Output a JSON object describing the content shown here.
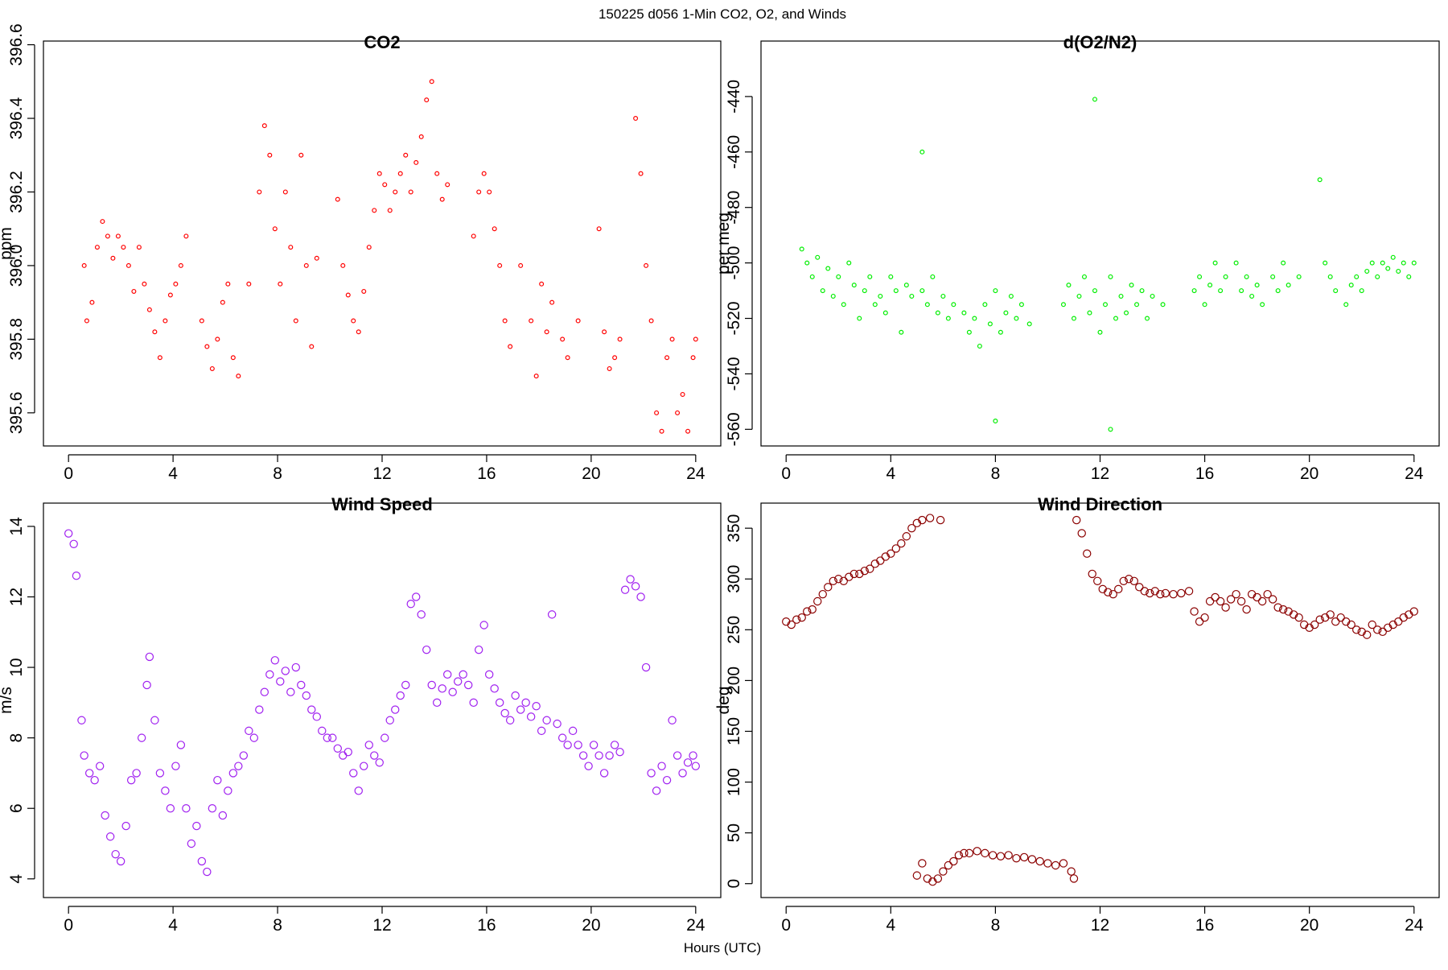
{
  "title": "150225   d056   1-Min CO2, O2, and Winds",
  "xlabel": "Hours (UTC)",
  "chart_data": [
    {
      "type": "scatter",
      "title": "CO2",
      "ylabel": "ppm",
      "color": "#ff0000",
      "marker_size": "small",
      "xlim": [
        -0.96,
        24.96
      ],
      "xticks": [
        0,
        4,
        8,
        12,
        16,
        20,
        24
      ],
      "ylim": [
        395.51,
        396.61
      ],
      "yticks": [
        395.6,
        395.8,
        {
          "value": 396,
          "label": "396.0"
        },
        396.2,
        396.4,
        396.6
      ],
      "x": [
        0.6,
        0.7,
        0.9,
        1.1,
        1.3,
        1.5,
        1.7,
        1.9,
        2.1,
        2.3,
        2.5,
        2.7,
        2.9,
        3.1,
        3.3,
        3.5,
        3.7,
        3.9,
        4.1,
        4.3,
        4.5,
        5.1,
        5.3,
        5.5,
        5.7,
        5.9,
        6.1,
        6.3,
        6.5,
        6.9,
        7.3,
        7.5,
        7.7,
        7.9,
        8.1,
        8.3,
        8.5,
        8.7,
        8.9,
        9.1,
        9.3,
        9.5,
        10.3,
        10.5,
        10.7,
        10.9,
        11.1,
        11.3,
        11.5,
        11.7,
        11.9,
        12.1,
        12.3,
        12.5,
        12.7,
        12.9,
        13.1,
        13.3,
        13.5,
        13.7,
        13.9,
        14.1,
        14.3,
        14.5,
        15.5,
        15.7,
        15.9,
        16.1,
        16.3,
        16.5,
        16.7,
        16.9,
        17.3,
        17.7,
        17.9,
        18.1,
        18.3,
        18.5,
        18.9,
        19.1,
        19.5,
        20.3,
        20.5,
        20.7,
        20.9,
        21.1,
        21.7,
        21.9,
        22.1,
        22.3,
        22.5,
        22.7,
        22.9,
        23.1,
        23.3,
        23.5,
        23.7,
        23.9,
        24.0
      ],
      "values": [
        396.0,
        395.85,
        395.9,
        396.05,
        396.12,
        396.08,
        396.02,
        396.08,
        396.05,
        396.0,
        395.93,
        396.05,
        395.95,
        395.88,
        395.82,
        395.75,
        395.85,
        395.92,
        395.95,
        396.0,
        396.08,
        395.85,
        395.78,
        395.72,
        395.8,
        395.9,
        395.95,
        395.75,
        395.7,
        395.95,
        396.2,
        396.38,
        396.3,
        396.1,
        395.95,
        396.2,
        396.05,
        395.85,
        396.3,
        396.0,
        395.78,
        396.02,
        396.18,
        396.0,
        395.92,
        395.85,
        395.82,
        395.93,
        396.05,
        396.15,
        396.25,
        396.22,
        396.15,
        396.2,
        396.25,
        396.3,
        396.2,
        396.28,
        396.35,
        396.45,
        396.5,
        396.25,
        396.18,
        396.22,
        396.08,
        396.2,
        396.25,
        396.2,
        396.1,
        396.0,
        395.85,
        395.78,
        396.0,
        395.85,
        395.7,
        395.95,
        395.82,
        395.9,
        395.8,
        395.75,
        395.85,
        396.1,
        395.82,
        395.72,
        395.75,
        395.8,
        396.4,
        396.25,
        396.0,
        395.85,
        395.6,
        395.55,
        395.75,
        395.8,
        395.6,
        395.65,
        395.55,
        395.75,
        395.8
      ]
    },
    {
      "type": "scatter",
      "title": "d(O2/N2)",
      "ylabel": "per meg",
      "color": "#00ee00",
      "marker_size": "small",
      "xlim": [
        -0.96,
        24.96
      ],
      "xticks": [
        0,
        4,
        8,
        12,
        16,
        20,
        24
      ],
      "ylim": [
        -566,
        -420
      ],
      "yticks": [
        -560,
        -540,
        -520,
        -500,
        -480,
        -460,
        -440
      ],
      "x": [
        0.6,
        0.8,
        1.0,
        1.2,
        1.4,
        1.6,
        1.8,
        2.0,
        2.2,
        2.4,
        2.6,
        2.8,
        3.0,
        3.2,
        3.4,
        3.6,
        3.8,
        4.0,
        4.2,
        4.4,
        4.6,
        4.8,
        5.2,
        5.2,
        5.4,
        5.6,
        5.8,
        6.0,
        6.2,
        6.4,
        6.8,
        7.0,
        7.2,
        7.4,
        7.6,
        7.8,
        8.0,
        8.0,
        8.2,
        8.4,
        8.6,
        8.8,
        9.0,
        9.3,
        10.6,
        10.8,
        11.0,
        11.2,
        11.4,
        11.6,
        11.8,
        11.8,
        12.0,
        12.2,
        12.4,
        12.4,
        12.6,
        12.8,
        13.0,
        13.2,
        13.4,
        13.6,
        13.8,
        14.0,
        14.4,
        15.6,
        15.8,
        16.0,
        16.2,
        16.4,
        16.6,
        16.8,
        17.2,
        17.4,
        17.6,
        17.8,
        18.0,
        18.2,
        18.6,
        18.8,
        19.0,
        19.2,
        19.6,
        20.4,
        20.6,
        20.8,
        21.0,
        21.4,
        21.6,
        21.8,
        22.0,
        22.2,
        22.4,
        22.6,
        22.8,
        23.0,
        23.2,
        23.4,
        23.6,
        23.8,
        24.0
      ],
      "values": [
        -495,
        -500,
        -505,
        -498,
        -510,
        -502,
        -512,
        -505,
        -515,
        -500,
        -508,
        -520,
        -510,
        -505,
        -515,
        -512,
        -518,
        -505,
        -510,
        -525,
        -508,
        -512,
        -510,
        -460,
        -515,
        -505,
        -518,
        -512,
        -520,
        -515,
        -518,
        -525,
        -520,
        -530,
        -515,
        -522,
        -510,
        -557,
        -525,
        -518,
        -512,
        -520,
        -515,
        -522,
        -515,
        -508,
        -520,
        -512,
        -505,
        -518,
        -510,
        -441,
        -525,
        -515,
        -505,
        -560,
        -520,
        -512,
        -518,
        -508,
        -515,
        -510,
        -520,
        -512,
        -515,
        -510,
        -505,
        -515,
        -508,
        -500,
        -510,
        -505,
        -500,
        -510,
        -505,
        -512,
        -508,
        -515,
        -505,
        -510,
        -500,
        -508,
        -505,
        -470,
        -500,
        -505,
        -510,
        -515,
        -508,
        -505,
        -510,
        -503,
        -500,
        -505,
        -500,
        -502,
        -498,
        -503,
        -500,
        -505,
        -500
      ]
    },
    {
      "type": "scatter",
      "title": "Wind Speed",
      "ylabel": "m/s",
      "color": "#a020f0",
      "marker_size": "large",
      "xlim": [
        -0.96,
        24.96
      ],
      "xticks": [
        0,
        4,
        8,
        12,
        16,
        20,
        24
      ],
      "ylim": [
        3.47,
        14.66
      ],
      "yticks": [
        4,
        6,
        8,
        10,
        12,
        14
      ],
      "x": [
        0.0,
        0.2,
        0.3,
        0.5,
        0.6,
        0.8,
        1.0,
        1.2,
        1.4,
        1.6,
        1.8,
        2.0,
        2.2,
        2.4,
        2.6,
        2.8,
        3.0,
        3.1,
        3.3,
        3.5,
        3.7,
        3.9,
        4.1,
        4.3,
        4.5,
        4.7,
        4.9,
        5.1,
        5.3,
        5.5,
        5.7,
        5.9,
        6.1,
        6.3,
        6.5,
        6.7,
        6.9,
        7.1,
        7.3,
        7.5,
        7.7,
        7.9,
        8.1,
        8.3,
        8.5,
        8.7,
        8.9,
        9.1,
        9.3,
        9.5,
        9.7,
        9.9,
        10.1,
        10.3,
        10.5,
        10.7,
        10.9,
        11.1,
        11.3,
        11.5,
        11.7,
        11.9,
        12.1,
        12.3,
        12.5,
        12.7,
        12.9,
        13.1,
        13.3,
        13.5,
        13.7,
        13.9,
        14.1,
        14.3,
        14.5,
        14.7,
        14.9,
        15.1,
        15.3,
        15.5,
        15.7,
        15.9,
        16.1,
        16.3,
        16.5,
        16.7,
        16.9,
        17.1,
        17.3,
        17.5,
        17.7,
        17.9,
        18.1,
        18.3,
        18.5,
        18.7,
        18.9,
        19.1,
        19.3,
        19.5,
        19.7,
        19.9,
        20.1,
        20.3,
        20.5,
        20.7,
        20.9,
        21.1,
        21.3,
        21.5,
        21.7,
        21.9,
        22.1,
        22.3,
        22.5,
        22.7,
        22.9,
        23.1,
        23.3,
        23.5,
        23.7,
        23.9,
        24.0
      ],
      "values": [
        13.8,
        13.5,
        12.6,
        8.5,
        7.5,
        7.0,
        6.8,
        7.2,
        5.8,
        5.2,
        4.7,
        4.5,
        5.5,
        6.8,
        7.0,
        8.0,
        9.5,
        10.3,
        8.5,
        7.0,
        6.5,
        6.0,
        7.2,
        7.8,
        6.0,
        5.0,
        5.5,
        4.5,
        4.2,
        6.0,
        6.8,
        5.8,
        6.5,
        7.0,
        7.2,
        7.5,
        8.2,
        8.0,
        8.8,
        9.3,
        9.8,
        10.2,
        9.6,
        9.9,
        9.3,
        10.0,
        9.5,
        9.2,
        8.8,
        8.6,
        8.2,
        8.0,
        8.0,
        7.7,
        7.5,
        7.6,
        7.0,
        6.5,
        7.2,
        7.8,
        7.5,
        7.3,
        8.0,
        8.5,
        8.8,
        9.2,
        9.5,
        11.8,
        12.0,
        11.5,
        10.5,
        9.5,
        9.0,
        9.4,
        9.8,
        9.3,
        9.6,
        9.8,
        9.5,
        9.0,
        10.5,
        11.2,
        9.8,
        9.4,
        9.0,
        8.7,
        8.5,
        9.2,
        8.8,
        9.0,
        8.6,
        8.9,
        8.2,
        8.5,
        11.5,
        8.4,
        8.0,
        7.8,
        8.2,
        7.8,
        7.5,
        7.2,
        7.8,
        7.5,
        7.0,
        7.5,
        7.8,
        7.6,
        12.2,
        12.5,
        12.3,
        12.0,
        10.0,
        7.0,
        6.5,
        7.2,
        6.8,
        8.5,
        7.5,
        7.0,
        7.3,
        7.5,
        7.2
      ]
    },
    {
      "type": "scatter",
      "title": "Wind Direction",
      "ylabel": "deg",
      "color": "#8b0000",
      "marker_size": "large",
      "xlim": [
        -0.96,
        24.96
      ],
      "xticks": [
        0,
        4,
        8,
        12,
        16,
        20,
        24
      ],
      "ylim": [
        -13.7,
        374.7
      ],
      "yticks": [
        0,
        50,
        100,
        150,
        200,
        250,
        300,
        350
      ],
      "x": [
        0.0,
        0.2,
        0.4,
        0.6,
        0.8,
        1.0,
        1.2,
        1.4,
        1.6,
        1.8,
        2.0,
        2.2,
        2.4,
        2.6,
        2.8,
        3.0,
        3.2,
        3.4,
        3.6,
        3.8,
        4.0,
        4.2,
        4.4,
        4.6,
        4.8,
        5.0,
        5.2,
        5.5,
        5.9,
        5.0,
        5.2,
        5.4,
        5.6,
        5.8,
        6.0,
        6.2,
        6.4,
        6.6,
        6.8,
        7.0,
        7.3,
        7.6,
        7.9,
        8.2,
        8.5,
        8.8,
        9.1,
        9.4,
        9.7,
        10.0,
        10.3,
        10.6,
        10.9,
        11.0,
        11.1,
        11.3,
        11.5,
        11.7,
        11.9,
        12.1,
        12.3,
        12.5,
        12.7,
        12.9,
        13.1,
        13.3,
        13.5,
        13.7,
        13.9,
        14.1,
        14.3,
        14.5,
        14.8,
        15.1,
        15.4,
        15.6,
        15.8,
        16.0,
        16.2,
        16.4,
        16.6,
        16.8,
        17.0,
        17.2,
        17.4,
        17.6,
        17.8,
        18.0,
        18.2,
        18.4,
        18.6,
        18.8,
        19.0,
        19.2,
        19.4,
        19.6,
        19.8,
        20.0,
        20.2,
        20.4,
        20.6,
        20.8,
        21.0,
        21.2,
        21.4,
        21.6,
        21.8,
        22.0,
        22.2,
        22.4,
        22.6,
        22.8,
        23.0,
        23.2,
        23.4,
        23.6,
        23.8,
        24.0
      ],
      "values": [
        258,
        255,
        260,
        262,
        268,
        270,
        278,
        285,
        292,
        298,
        300,
        298,
        302,
        305,
        305,
        308,
        310,
        315,
        318,
        322,
        325,
        330,
        335,
        342,
        350,
        355,
        358,
        360,
        358,
        8,
        20,
        5,
        2,
        5,
        12,
        18,
        22,
        28,
        30,
        30,
        32,
        30,
        28,
        27,
        28,
        25,
        26,
        24,
        22,
        20,
        18,
        20,
        12,
        5,
        358,
        345,
        325,
        305,
        298,
        290,
        287,
        285,
        290,
        298,
        300,
        298,
        292,
        288,
        286,
        288,
        285,
        286,
        285,
        286,
        288,
        268,
        258,
        262,
        278,
        282,
        278,
        272,
        280,
        285,
        278,
        270,
        285,
        282,
        278,
        285,
        280,
        272,
        270,
        268,
        265,
        262,
        255,
        252,
        255,
        260,
        262,
        265,
        258,
        262,
        258,
        255,
        250,
        248,
        245,
        255,
        250,
        248,
        252,
        255,
        258,
        262,
        265,
        268
      ]
    }
  ]
}
